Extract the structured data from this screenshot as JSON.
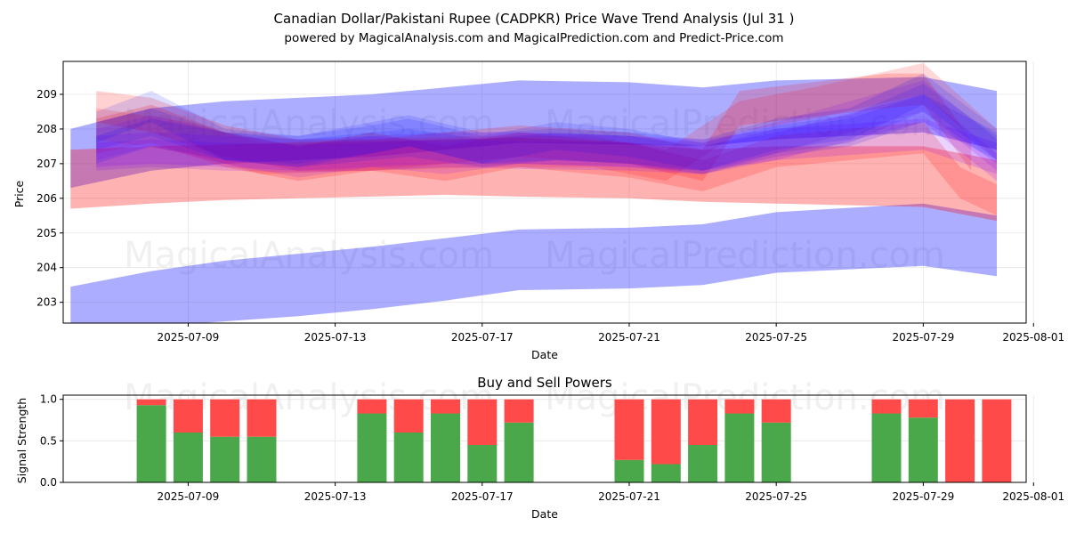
{
  "chart_data": [
    {
      "type": "area",
      "title": "Canadian Dollar/Pakistani Rupee (CADPKR) Price Wave Trend Analysis (Jul 31 )",
      "subtitle": "powered by MagicalAnalysis.com and MagicalPrediction.com and Predict-Price.com",
      "xlabel": "Date",
      "ylabel": "Price",
      "xlim": [
        5.6,
        31.8
      ],
      "ylim": [
        202.4,
        209.95
      ],
      "x_ticks": [
        {
          "x": 9,
          "label": "2025-07-09"
        },
        {
          "x": 13,
          "label": "2025-07-13"
        },
        {
          "x": 17,
          "label": "2025-07-17"
        },
        {
          "x": 21,
          "label": "2025-07-21"
        },
        {
          "x": 25,
          "label": "2025-07-25"
        },
        {
          "x": 29,
          "label": "2025-07-29"
        },
        {
          "x": 32,
          "label": "2025-08-01"
        }
      ],
      "y_ticks": [
        203,
        204,
        205,
        206,
        207,
        208,
        209
      ],
      "grid": true,
      "watermarks": [
        "MagicalAnalysis.com",
        "MagicalPrediction.com"
      ],
      "bands": [
        {
          "name": "blue-upper-wide",
          "color": "#0000ff",
          "opacity": 0.32,
          "x": [
            5.8,
            8,
            10,
            12,
            14,
            16,
            18,
            21,
            23,
            25,
            29,
            31
          ],
          "upper": [
            208.0,
            208.6,
            208.8,
            208.9,
            209.0,
            209.2,
            209.4,
            209.35,
            209.2,
            209.4,
            209.5,
            209.1
          ],
          "lower": [
            206.3,
            206.8,
            207.0,
            207.1,
            207.2,
            207.4,
            207.6,
            207.55,
            207.5,
            207.7,
            207.9,
            207.4
          ]
        },
        {
          "name": "blue-lower-wide",
          "color": "#0000ff",
          "opacity": 0.32,
          "x": [
            5.8,
            8,
            10,
            12,
            14,
            16,
            18,
            21,
            23,
            25,
            29,
            31
          ],
          "upper": [
            203.45,
            203.9,
            204.2,
            204.4,
            204.6,
            204.85,
            205.1,
            205.15,
            205.25,
            205.6,
            205.85,
            205.5
          ],
          "lower": [
            202.1,
            202.3,
            202.45,
            202.6,
            202.8,
            203.05,
            203.35,
            203.4,
            203.5,
            203.85,
            204.05,
            203.75
          ]
        },
        {
          "name": "red-wide",
          "color": "#ff0000",
          "opacity": 0.3,
          "x": [
            5.8,
            8,
            10,
            12,
            14,
            16,
            18,
            21,
            23,
            25,
            29,
            31
          ],
          "upper": [
            207.4,
            207.5,
            207.55,
            207.6,
            207.65,
            207.7,
            207.75,
            207.6,
            207.4,
            207.5,
            207.5,
            207.1
          ],
          "lower": [
            205.7,
            205.85,
            205.95,
            206.0,
            206.05,
            206.1,
            206.05,
            206.0,
            205.9,
            205.85,
            205.75,
            205.35
          ]
        },
        {
          "name": "red-1",
          "color": "#ff0000",
          "opacity": 0.18,
          "x": [
            6.5,
            8,
            10,
            12,
            14,
            16,
            18,
            21,
            23,
            24,
            28,
            29,
            30.3
          ],
          "upper": [
            209.1,
            208.9,
            208.1,
            207.7,
            207.7,
            207.9,
            208.1,
            207.9,
            207.4,
            209.1,
            209.6,
            209.6,
            207.7
          ],
          "lower": [
            208.2,
            207.9,
            207.2,
            206.8,
            206.8,
            207.0,
            207.2,
            207.0,
            206.5,
            208.1,
            208.6,
            208.7,
            206.8
          ]
        },
        {
          "name": "red-2",
          "color": "#ff0000",
          "opacity": 0.18,
          "x": [
            6.5,
            8,
            10,
            12,
            14,
            16,
            18,
            21,
            23,
            25,
            29,
            30,
            31
          ],
          "upper": [
            208.3,
            208.7,
            207.9,
            207.5,
            207.9,
            207.5,
            207.9,
            207.6,
            207.1,
            207.8,
            208.2,
            206.9,
            206.4
          ],
          "lower": [
            207.3,
            207.6,
            206.9,
            206.5,
            206.8,
            206.5,
            206.9,
            206.6,
            206.2,
            206.9,
            207.3,
            206.0,
            205.5
          ]
        },
        {
          "name": "red-3",
          "color": "#ff0000",
          "opacity": 0.15,
          "x": [
            6.5,
            9,
            11,
            14,
            17,
            20,
            22,
            24,
            26,
            29,
            31
          ],
          "upper": [
            208.6,
            208.2,
            207.6,
            207.7,
            207.8,
            207.8,
            207.4,
            208.8,
            209.2,
            209.9,
            208.0
          ],
          "lower": [
            207.7,
            207.3,
            206.7,
            206.8,
            206.9,
            206.9,
            206.5,
            207.9,
            208.3,
            209.0,
            207.1
          ]
        },
        {
          "name": "purple-1",
          "color": "#8000ff",
          "opacity": 0.17,
          "x": [
            6.5,
            8,
            10,
            12,
            14,
            16,
            18,
            21,
            23,
            25,
            29,
            31
          ],
          "upper": [
            207.8,
            207.9,
            207.8,
            207.7,
            207.8,
            207.9,
            207.9,
            207.8,
            207.7,
            208.0,
            208.3,
            207.6
          ],
          "lower": [
            206.9,
            207.0,
            206.9,
            206.8,
            206.9,
            207.0,
            207.0,
            206.9,
            206.8,
            207.1,
            207.4,
            206.7
          ]
        },
        {
          "name": "purple-2",
          "color": "#8000ff",
          "opacity": 0.17,
          "x": [
            6.5,
            8,
            10,
            12,
            14,
            16,
            18,
            21,
            23,
            25,
            29,
            31
          ],
          "upper": [
            207.6,
            207.7,
            207.6,
            207.55,
            207.6,
            207.7,
            207.65,
            207.6,
            207.5,
            207.9,
            209.0,
            207.3
          ],
          "lower": [
            206.8,
            206.9,
            206.8,
            206.75,
            206.8,
            206.9,
            206.85,
            206.8,
            206.7,
            207.1,
            208.2,
            206.5
          ]
        },
        {
          "name": "purple-3",
          "color": "#8000ff",
          "opacity": 0.15,
          "x": [
            6.5,
            8,
            10,
            12,
            14,
            16,
            18,
            21,
            23,
            25,
            29,
            31
          ],
          "upper": [
            208.0,
            208.4,
            207.9,
            207.5,
            207.8,
            207.6,
            207.9,
            207.8,
            207.6,
            208.2,
            209.4,
            207.7
          ],
          "lower": [
            207.1,
            207.5,
            207.0,
            206.6,
            206.9,
            206.7,
            207.0,
            206.9,
            206.7,
            207.3,
            208.5,
            206.8
          ]
        },
        {
          "name": "blue-1",
          "color": "#0000ff",
          "opacity": 0.13,
          "x": [
            6.5,
            8,
            10,
            12,
            14,
            15,
            17,
            19,
            21,
            23,
            25,
            27,
            29,
            31
          ],
          "upper": [
            208.5,
            209.1,
            208.0,
            207.8,
            208.2,
            208.4,
            207.9,
            208.0,
            207.9,
            207.7,
            208.3,
            208.6,
            209.6,
            208.0
          ],
          "lower": [
            207.6,
            208.2,
            207.1,
            206.9,
            207.3,
            207.5,
            207.0,
            207.1,
            207.0,
            206.8,
            207.4,
            207.7,
            208.7,
            207.1
          ]
        },
        {
          "name": "blue-2",
          "color": "#0000ff",
          "opacity": 0.13,
          "x": [
            6.5,
            8,
            10,
            12,
            14,
            15,
            17,
            19,
            21,
            23,
            25,
            27,
            29,
            31
          ],
          "upper": [
            207.8,
            208.3,
            207.9,
            207.7,
            207.9,
            208.0,
            207.7,
            207.9,
            207.8,
            207.5,
            208.0,
            208.3,
            209.0,
            207.9
          ],
          "lower": [
            207.0,
            207.5,
            207.1,
            206.9,
            207.1,
            207.2,
            206.9,
            207.1,
            207.0,
            206.7,
            207.2,
            207.5,
            208.2,
            207.1
          ]
        },
        {
          "name": "blue-3",
          "color": "#0000ff",
          "opacity": 0.12,
          "x": [
            6.5,
            8,
            10,
            12,
            14,
            15,
            17,
            19,
            21,
            23,
            25,
            27,
            29,
            31
          ],
          "upper": [
            208.2,
            208.6,
            207.9,
            207.8,
            208.1,
            208.3,
            207.8,
            208.2,
            208.0,
            207.6,
            208.1,
            208.4,
            209.3,
            207.8
          ],
          "lower": [
            207.4,
            207.8,
            207.1,
            207.0,
            207.3,
            207.5,
            207.0,
            207.4,
            207.2,
            206.8,
            207.3,
            207.6,
            208.5,
            207.0
          ]
        }
      ]
    },
    {
      "type": "bar",
      "title": "Buy and Sell Powers",
      "xlabel": "Date",
      "ylabel": "Signal Strength",
      "xlim": [
        5.6,
        31.8
      ],
      "ylim": [
        0,
        1.05
      ],
      "y_ticks": [
        "0.0",
        "0.5",
        "1.0"
      ],
      "x_ticks": [
        {
          "x": 9,
          "label": "2025-07-09"
        },
        {
          "x": 13,
          "label": "2025-07-13"
        },
        {
          "x": 17,
          "label": "2025-07-17"
        },
        {
          "x": 21,
          "label": "2025-07-21"
        },
        {
          "x": 25,
          "label": "2025-07-25"
        },
        {
          "x": 29,
          "label": "2025-07-29"
        },
        {
          "x": 32,
          "label": "2025-08-01"
        }
      ],
      "buy_color": "#4aa84a",
      "sell_color": "#ff4a4a",
      "x": [
        8,
        9,
        10,
        11,
        14,
        15,
        16,
        17,
        18,
        21,
        22,
        23,
        24,
        25,
        28,
        29,
        30,
        31
      ],
      "series": [
        {
          "name": "Buy",
          "values": [
            0.93,
            0.6,
            0.55,
            0.55,
            0.83,
            0.6,
            0.83,
            0.45,
            0.72,
            0.27,
            0.22,
            0.45,
            0.83,
            0.72,
            0.83,
            0.78,
            0.0,
            0.0
          ]
        },
        {
          "name": "Sell",
          "values": [
            0.07,
            0.4,
            0.45,
            0.45,
            0.17,
            0.4,
            0.17,
            0.55,
            0.28,
            0.73,
            0.78,
            0.55,
            0.17,
            0.28,
            0.17,
            0.22,
            1.0,
            1.0
          ]
        }
      ]
    }
  ]
}
